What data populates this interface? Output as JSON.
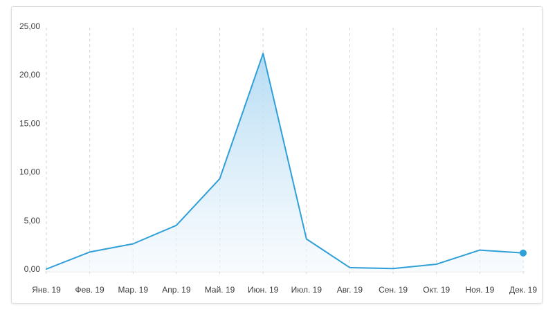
{
  "chart_data": {
    "type": "area",
    "categories": [
      "Янв. 19",
      "Фев. 19",
      "Мар. 19",
      "Апр. 19",
      "Май. 19",
      "Июн. 19",
      "Июл. 19",
      "Авг. 19",
      "Сен. 19",
      "Окт. 19",
      "Ноя. 19",
      "Дек. 19"
    ],
    "series": [
      {
        "values": [
          0.0,
          1.75,
          2.6,
          4.5,
          9.3,
          22.2,
          3.1,
          0.15,
          0.05,
          0.5,
          1.95,
          1.65
        ]
      }
    ],
    "y_ticks": [
      "0,00",
      "5,00",
      "10,00",
      "15,00",
      "20,00",
      "25,00"
    ],
    "ylim": [
      0,
      25
    ],
    "grid": "vertical-dashed",
    "colors": {
      "line": "#2f9fd8",
      "fill_top": "#a9d6f2",
      "fill_bottom": "#f4f9fd",
      "grid": "#d4d4d4",
      "baseline": "#e2e2e2"
    }
  }
}
